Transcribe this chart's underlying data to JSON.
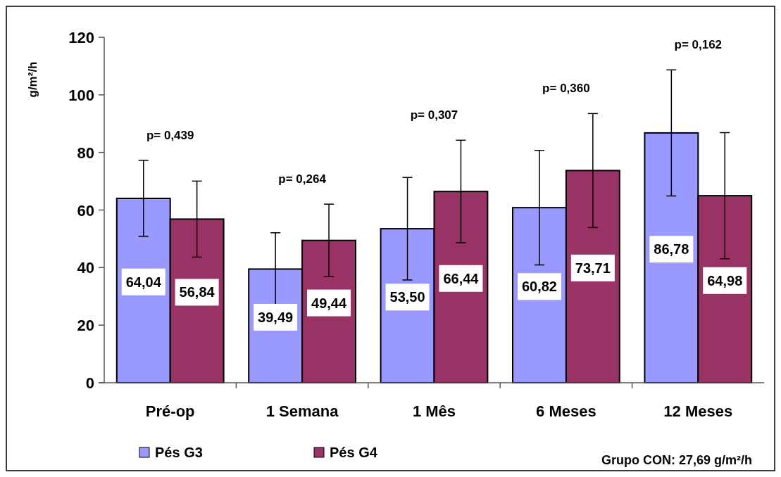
{
  "chart_data": {
    "type": "bar",
    "ylabel": "g/m²/h",
    "categories": [
      "Pré-op",
      "1 Semana",
      "1 Mês",
      "6 Meses",
      "12 Meses"
    ],
    "series": [
      {
        "name": "Pés G3",
        "color": "#9999ff",
        "values": [
          64.04,
          39.49,
          53.5,
          60.82,
          86.78
        ],
        "errors": [
          13.2,
          12.6,
          17.8,
          19.9,
          21.9
        ],
        "value_labels": [
          "64,04",
          "39,49",
          "53,50",
          "60,82",
          "86,78"
        ]
      },
      {
        "name": "Pés G4",
        "color": "#993366",
        "values": [
          56.84,
          49.44,
          66.44,
          73.71,
          64.98
        ],
        "errors": [
          13.2,
          12.6,
          17.8,
          19.8,
          21.9
        ],
        "value_labels": [
          "56,84",
          "49,44",
          "66,44",
          "73,71",
          "64,98"
        ]
      }
    ],
    "ylim": [
      0,
      120
    ],
    "yticks": [
      0,
      20,
      40,
      60,
      80,
      100,
      120
    ],
    "grid": false,
    "legend": "bottom",
    "annotations": [
      "p= 0,439",
      "p= 0,264",
      "p= 0,307",
      "p= 0,360",
      "p= 0,162",
      "Grupo CON: 27,69 g/m²/h"
    ]
  }
}
